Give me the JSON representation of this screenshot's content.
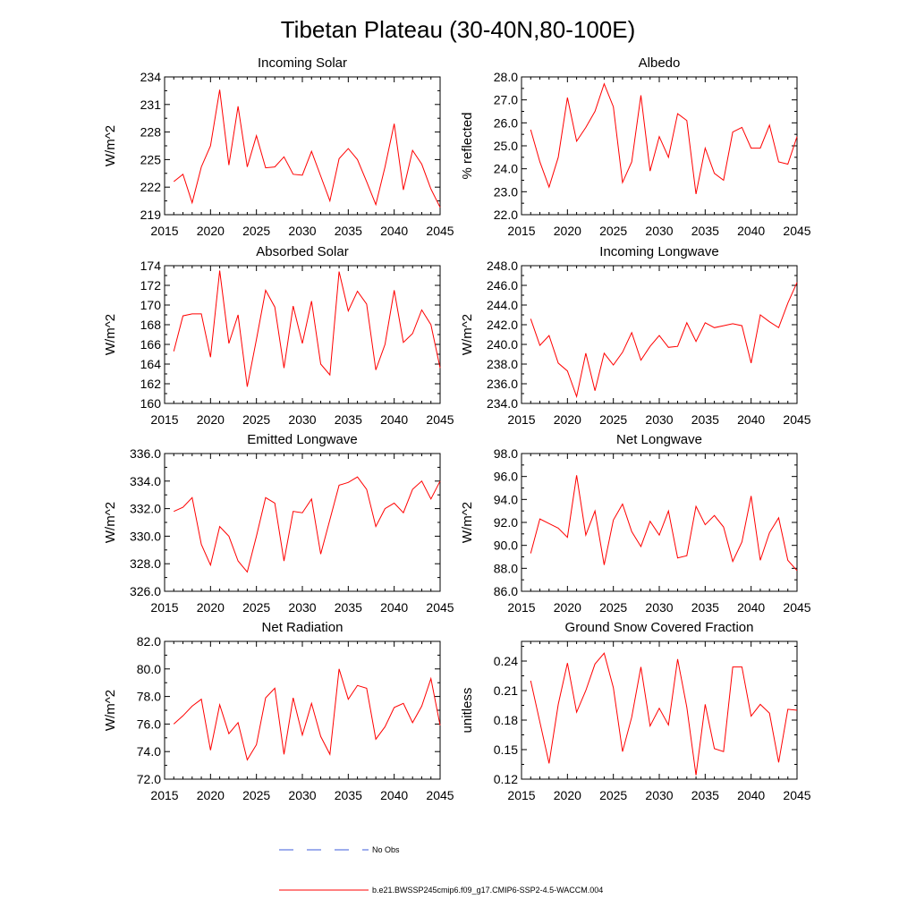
{
  "figure": {
    "title": "Tibetan Plateau (30-40N,80-100E)",
    "line_color": "#ff0000",
    "obs_color": "#3b5bdb"
  },
  "legend": {
    "obs_label": "No Obs",
    "model_label": "b.e21.BWSSP245cmip6.f09_g17.CMIP6-SSP2-4.5-WACCM.004"
  },
  "chart_data": [
    {
      "type": "line",
      "title": "Incoming Solar",
      "ylabel": "W/m^2",
      "xlabel": "",
      "xlim": [
        2015,
        2045
      ],
      "ylim": [
        219,
        234
      ],
      "yticks": [
        219,
        222,
        225,
        228,
        231,
        234
      ],
      "ytick_labels": [
        "219",
        "222",
        "225",
        "228",
        "231",
        "234"
      ],
      "xticks": [
        2015,
        2020,
        2025,
        2030,
        2035,
        2040,
        2045
      ],
      "xtick_labels": [
        "2015",
        "2020",
        "2025",
        "2030",
        "2035",
        "2040",
        "2045"
      ],
      "x": [
        2016,
        2017,
        2018,
        2019,
        2020,
        2021,
        2022,
        2023,
        2024,
        2025,
        2026,
        2027,
        2028,
        2029,
        2030,
        2031,
        2032,
        2033,
        2034,
        2035,
        2036,
        2037,
        2038,
        2039,
        2040,
        2041,
        2042,
        2043,
        2044,
        2045
      ],
      "series": [
        {
          "name": "b.e21.BWSSP245cmip6.f09_g17.CMIP6-SSP2-4.5-WACCM.004",
          "values": [
            222.6,
            223.4,
            220.3,
            224.2,
            226.5,
            232.6,
            224.4,
            230.8,
            224.2,
            227.6,
            224.1,
            224.2,
            225.3,
            223.4,
            223.3,
            225.9,
            223.2,
            220.5,
            225.1,
            226.2,
            225.0,
            222.6,
            220.1,
            224.2,
            228.9,
            221.7,
            226.0,
            224.5,
            221.8,
            219.8
          ]
        }
      ]
    },
    {
      "type": "line",
      "title": "Albedo",
      "ylabel": "% reflected",
      "xlabel": "",
      "xlim": [
        2015,
        2045
      ],
      "ylim": [
        22.0,
        28.0
      ],
      "yticks": [
        22,
        23,
        24,
        25,
        26,
        27,
        28
      ],
      "ytick_labels": [
        "22.0",
        "23.0",
        "24.0",
        "25.0",
        "26.0",
        "27.0",
        "28.0"
      ],
      "xticks": [
        2015,
        2020,
        2025,
        2030,
        2035,
        2040,
        2045
      ],
      "xtick_labels": [
        "2015",
        "2020",
        "2025",
        "2030",
        "2035",
        "2040",
        "2045"
      ],
      "x": [
        2016,
        2017,
        2018,
        2019,
        2020,
        2021,
        2022,
        2023,
        2024,
        2025,
        2026,
        2027,
        2028,
        2029,
        2030,
        2031,
        2032,
        2033,
        2034,
        2035,
        2036,
        2037,
        2038,
        2039,
        2040,
        2041,
        2042,
        2043,
        2044,
        2045
      ],
      "series": [
        {
          "name": "b.e21.BWSSP245cmip6.f09_g17.CMIP6-SSP2-4.5-WACCM.004",
          "values": [
            25.7,
            24.3,
            23.2,
            24.5,
            27.1,
            25.2,
            25.8,
            26.5,
            27.7,
            26.7,
            23.4,
            24.3,
            27.2,
            23.9,
            25.4,
            24.5,
            26.4,
            26.1,
            22.9,
            24.9,
            23.8,
            23.5,
            25.6,
            25.8,
            24.9,
            24.9,
            25.9,
            24.3,
            24.2,
            25.4
          ]
        }
      ]
    },
    {
      "type": "line",
      "title": "Absorbed Solar",
      "ylabel": "W/m^2",
      "xlabel": "",
      "xlim": [
        2015,
        2045
      ],
      "ylim": [
        160,
        174
      ],
      "yticks": [
        160,
        162,
        164,
        166,
        168,
        170,
        172,
        174
      ],
      "ytick_labels": [
        "160",
        "162",
        "164",
        "166",
        "168",
        "170",
        "172",
        "174"
      ],
      "xticks": [
        2015,
        2020,
        2025,
        2030,
        2035,
        2040,
        2045
      ],
      "xtick_labels": [
        "2015",
        "2020",
        "2025",
        "2030",
        "2035",
        "2040",
        "2045"
      ],
      "x": [
        2016,
        2017,
        2018,
        2019,
        2020,
        2021,
        2022,
        2023,
        2024,
        2025,
        2026,
        2027,
        2028,
        2029,
        2030,
        2031,
        2032,
        2033,
        2034,
        2035,
        2036,
        2037,
        2038,
        2039,
        2040,
        2041,
        2042,
        2043,
        2044,
        2045
      ],
      "series": [
        {
          "name": "b.e21.BWSSP245cmip6.f09_g17.CMIP6-SSP2-4.5-WACCM.004",
          "values": [
            165.3,
            168.9,
            169.1,
            169.1,
            164.7,
            173.5,
            166.1,
            169.0,
            161.7,
            166.5,
            171.5,
            169.8,
            163.6,
            169.9,
            166.1,
            170.4,
            164.0,
            162.9,
            173.4,
            169.4,
            171.4,
            170.1,
            163.4,
            166.0,
            171.5,
            166.2,
            167.1,
            169.5,
            168.0,
            163.6
          ]
        }
      ]
    },
    {
      "type": "line",
      "title": "Incoming Longwave",
      "ylabel": "W/m^2",
      "xlabel": "",
      "xlim": [
        2015,
        2045
      ],
      "ylim": [
        234.0,
        248.0
      ],
      "yticks": [
        234,
        236,
        238,
        240,
        242,
        244,
        246,
        248
      ],
      "ytick_labels": [
        "234.0",
        "236.0",
        "238.0",
        "240.0",
        "242.0",
        "244.0",
        "246.0",
        "248.0"
      ],
      "xticks": [
        2015,
        2020,
        2025,
        2030,
        2035,
        2040,
        2045
      ],
      "xtick_labels": [
        "2015",
        "2020",
        "2025",
        "2030",
        "2035",
        "2040",
        "2045"
      ],
      "x": [
        2016,
        2017,
        2018,
        2019,
        2020,
        2021,
        2022,
        2023,
        2024,
        2025,
        2026,
        2027,
        2028,
        2029,
        2030,
        2031,
        2032,
        2033,
        2034,
        2035,
        2036,
        2037,
        2038,
        2039,
        2040,
        2041,
        2042,
        2043,
        2044,
        2045
      ],
      "series": [
        {
          "name": "b.e21.BWSSP245cmip6.f09_g17.CMIP6-SSP2-4.5-WACCM.004",
          "values": [
            242.6,
            239.9,
            240.9,
            238.1,
            237.3,
            234.7,
            239.1,
            235.3,
            239.1,
            237.9,
            239.2,
            241.2,
            238.4,
            239.8,
            240.9,
            239.7,
            239.8,
            242.2,
            240.3,
            242.2,
            241.7,
            241.9,
            242.1,
            241.9,
            238.1,
            243.0,
            242.3,
            241.7,
            244.2,
            246.3
          ]
        }
      ]
    },
    {
      "type": "line",
      "title": "Emitted Longwave",
      "ylabel": "W/m^2",
      "xlabel": "",
      "xlim": [
        2015,
        2045
      ],
      "ylim": [
        326.0,
        336.0
      ],
      "yticks": [
        326,
        328,
        330,
        332,
        334,
        336
      ],
      "ytick_labels": [
        "326.0",
        "328.0",
        "330.0",
        "332.0",
        "334.0",
        "336.0"
      ],
      "xticks": [
        2015,
        2020,
        2025,
        2030,
        2035,
        2040,
        2045
      ],
      "xtick_labels": [
        "2015",
        "2020",
        "2025",
        "2030",
        "2035",
        "2040",
        "2045"
      ],
      "x": [
        2016,
        2017,
        2018,
        2019,
        2020,
        2021,
        2022,
        2023,
        2024,
        2025,
        2026,
        2027,
        2028,
        2029,
        2030,
        2031,
        2032,
        2033,
        2034,
        2035,
        2036,
        2037,
        2038,
        2039,
        2040,
        2041,
        2042,
        2043,
        2044,
        2045
      ],
      "series": [
        {
          "name": "b.e21.BWSSP245cmip6.f09_g17.CMIP6-SSP2-4.5-WACCM.004",
          "values": [
            331.8,
            332.1,
            332.8,
            329.4,
            327.9,
            330.7,
            330.0,
            328.2,
            327.4,
            330.0,
            332.8,
            332.4,
            328.2,
            331.8,
            331.7,
            332.7,
            328.7,
            331.2,
            333.7,
            333.9,
            334.3,
            333.4,
            330.7,
            332.0,
            332.4,
            331.7,
            333.4,
            334.0,
            332.7,
            334.0
          ]
        }
      ]
    },
    {
      "type": "line",
      "title": "Net Longwave",
      "ylabel": "W/m^2",
      "xlabel": "",
      "xlim": [
        2015,
        2045
      ],
      "ylim": [
        86.0,
        98.0
      ],
      "yticks": [
        86,
        88,
        90,
        92,
        94,
        96,
        98
      ],
      "ytick_labels": [
        "86.0",
        "88.0",
        "90.0",
        "92.0",
        "94.0",
        "96.0",
        "98.0"
      ],
      "xticks": [
        2015,
        2020,
        2025,
        2030,
        2035,
        2040,
        2045
      ],
      "xtick_labels": [
        "2015",
        "2020",
        "2025",
        "2030",
        "2035",
        "2040",
        "2045"
      ],
      "x": [
        2016,
        2017,
        2018,
        2019,
        2020,
        2021,
        2022,
        2023,
        2024,
        2025,
        2026,
        2027,
        2028,
        2029,
        2030,
        2031,
        2032,
        2033,
        2034,
        2035,
        2036,
        2037,
        2038,
        2039,
        2040,
        2041,
        2042,
        2043,
        2044,
        2045
      ],
      "series": [
        {
          "name": "b.e21.BWSSP245cmip6.f09_g17.CMIP6-SSP2-4.5-WACCM.004",
          "values": [
            89.3,
            92.3,
            91.9,
            91.5,
            90.7,
            96.1,
            90.9,
            93.0,
            88.3,
            92.2,
            93.6,
            91.2,
            89.9,
            92.1,
            90.9,
            93.0,
            88.9,
            89.1,
            93.4,
            91.8,
            92.6,
            91.6,
            88.6,
            90.3,
            94.3,
            88.7,
            91.1,
            92.4,
            88.7,
            87.8
          ]
        }
      ]
    },
    {
      "type": "line",
      "title": "Net Radiation",
      "ylabel": "W/m^2",
      "xlabel": "",
      "xlim": [
        2015,
        2045
      ],
      "ylim": [
        72.0,
        82.0
      ],
      "yticks": [
        72,
        74,
        76,
        78,
        80,
        82
      ],
      "ytick_labels": [
        "72.0",
        "74.0",
        "76.0",
        "78.0",
        "80.0",
        "82.0"
      ],
      "xticks": [
        2015,
        2020,
        2025,
        2030,
        2035,
        2040,
        2045
      ],
      "xtick_labels": [
        "2015",
        "2020",
        "2025",
        "2030",
        "2035",
        "2040",
        "2045"
      ],
      "x": [
        2016,
        2017,
        2018,
        2019,
        2020,
        2021,
        2022,
        2023,
        2024,
        2025,
        2026,
        2027,
        2028,
        2029,
        2030,
        2031,
        2032,
        2033,
        2034,
        2035,
        2036,
        2037,
        2038,
        2039,
        2040,
        2041,
        2042,
        2043,
        2044,
        2045
      ],
      "series": [
        {
          "name": "b.e21.BWSSP245cmip6.f09_g17.CMIP6-SSP2-4.5-WACCM.004",
          "values": [
            76.0,
            76.6,
            77.3,
            77.8,
            74.1,
            77.4,
            75.3,
            76.1,
            73.4,
            74.5,
            77.9,
            78.6,
            73.8,
            77.9,
            75.2,
            77.5,
            75.1,
            73.8,
            80.0,
            77.8,
            78.8,
            78.6,
            74.9,
            75.8,
            77.2,
            77.5,
            76.1,
            77.3,
            79.3,
            75.9
          ]
        }
      ]
    },
    {
      "type": "line",
      "title": "Ground Snow Covered Fraction",
      "ylabel": "unitless",
      "xlabel": "",
      "xlim": [
        2015,
        2045
      ],
      "ylim": [
        0.12,
        0.26
      ],
      "yticks": [
        0.12,
        0.15,
        0.18,
        0.21,
        0.24
      ],
      "ytick_labels": [
        "0.12",
        "0.15",
        "0.18",
        "0.21",
        "0.24"
      ],
      "xticks": [
        2015,
        2020,
        2025,
        2030,
        2035,
        2040,
        2045
      ],
      "xtick_labels": [
        "2015",
        "2020",
        "2025",
        "2030",
        "2035",
        "2040",
        "2045"
      ],
      "x": [
        2016,
        2017,
        2018,
        2019,
        2020,
        2021,
        2022,
        2023,
        2024,
        2025,
        2026,
        2027,
        2028,
        2029,
        2030,
        2031,
        2032,
        2033,
        2034,
        2035,
        2036,
        2037,
        2038,
        2039,
        2040,
        2041,
        2042,
        2043,
        2044,
        2045
      ],
      "series": [
        {
          "name": "b.e21.BWSSP245cmip6.f09_g17.CMIP6-SSP2-4.5-WACCM.004",
          "values": [
            0.22,
            0.178,
            0.136,
            0.196,
            0.238,
            0.188,
            0.21,
            0.237,
            0.248,
            0.213,
            0.148,
            0.183,
            0.234,
            0.174,
            0.192,
            0.175,
            0.242,
            0.193,
            0.124,
            0.196,
            0.151,
            0.148,
            0.234,
            0.234,
            0.184,
            0.196,
            0.187,
            0.137,
            0.191,
            0.19
          ]
        }
      ]
    }
  ]
}
